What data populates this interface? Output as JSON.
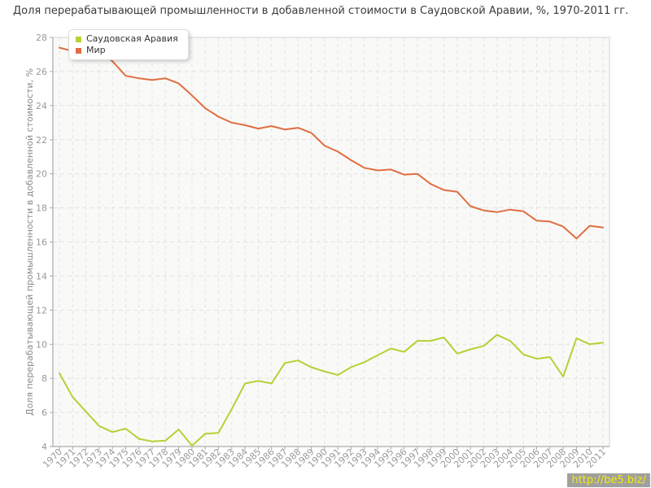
{
  "page": {
    "watermark": "http://be5.biz/"
  },
  "chart_data": {
    "type": "line",
    "title": "Доля перерабатывающей промышленности в добавленной стоимости в Саудовской Аравии, %, 1970-2011 гг.",
    "ylabel": "Доля перерабатывающей промышленности в добавленной стоимости, %",
    "xlabel": "",
    "x": [
      "1970",
      "1971",
      "1972",
      "1973",
      "1974",
      "1975",
      "1976",
      "1977",
      "1978",
      "1979",
      "1980",
      "1981",
      "1982",
      "1983",
      "1984",
      "1985",
      "1986",
      "1987",
      "1988",
      "1989",
      "1990",
      "1991",
      "1992",
      "1993",
      "1994",
      "1995",
      "1996",
      "1997",
      "1998",
      "1999",
      "2000",
      "2001",
      "2002",
      "2003",
      "2004",
      "2005",
      "2006",
      "2007",
      "2008",
      "2009",
      "2010",
      "2011"
    ],
    "ylim": [
      4,
      28
    ],
    "yticks": [
      4,
      6,
      8,
      10,
      12,
      14,
      16,
      18,
      20,
      22,
      24,
      26,
      28
    ],
    "grid": true,
    "legend_position": "top-left",
    "series": [
      {
        "name": "Саудовская Аравия",
        "color": "#b2d235",
        "values": [
          8.3,
          6.9,
          6.05,
          5.2,
          4.85,
          5.05,
          4.45,
          4.3,
          4.35,
          5.0,
          4.05,
          4.75,
          4.8,
          6.2,
          7.7,
          7.85,
          7.7,
          8.9,
          9.05,
          8.65,
          8.4,
          8.2,
          8.65,
          8.95,
          9.35,
          9.75,
          9.55,
          10.2,
          10.2,
          10.4,
          9.45,
          9.7,
          9.9,
          10.55,
          10.2,
          9.4,
          9.15,
          9.25,
          8.1,
          10.35,
          10.0,
          10.1
        ]
      },
      {
        "name": "Мир",
        "color": "#e06e42",
        "values": [
          27.4,
          27.2,
          27.0,
          27.2,
          26.6,
          25.75,
          25.6,
          25.5,
          25.6,
          25.3,
          24.6,
          23.85,
          23.35,
          23.0,
          22.85,
          22.65,
          22.8,
          22.6,
          22.7,
          22.4,
          21.65,
          21.3,
          20.8,
          20.35,
          20.2,
          20.25,
          19.95,
          20.0,
          19.4,
          19.05,
          18.95,
          18.1,
          17.85,
          17.75,
          17.9,
          17.8,
          17.25,
          17.2,
          16.9,
          16.2,
          16.95,
          16.85
        ]
      }
    ]
  }
}
